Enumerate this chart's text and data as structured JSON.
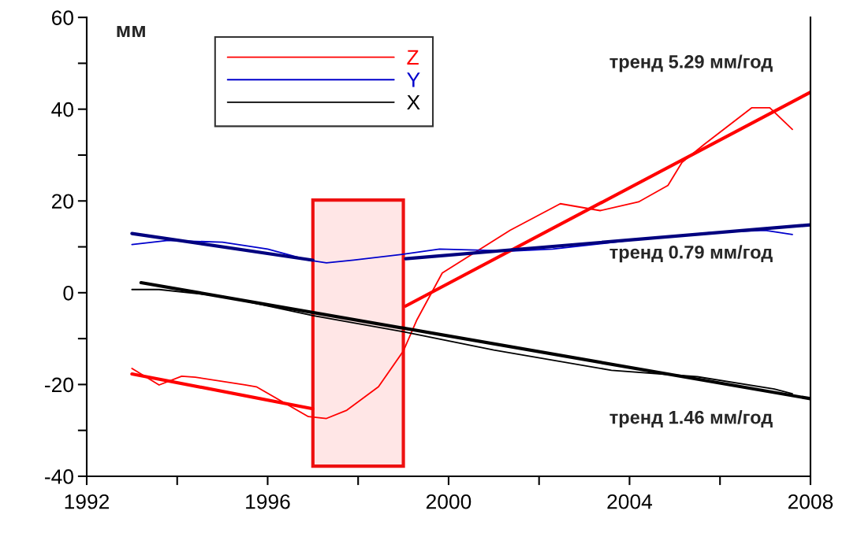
{
  "chart_data": {
    "type": "line",
    "ylabel": "мм",
    "xlim": [
      1992,
      2008
    ],
    "ylim": [
      -40,
      60
    ],
    "xticks": [
      1992,
      {
        "value": 1994,
        "label": null
      },
      1996,
      {
        "value": 1998,
        "label": null
      },
      2000,
      {
        "value": 2002,
        "label": null
      },
      2004,
      {
        "value": 2006,
        "label": null
      },
      2008
    ],
    "yticks": [
      -40,
      {
        "value": -30,
        "label": null
      },
      -20,
      {
        "value": -10,
        "label": null
      },
      0,
      {
        "value": 10,
        "label": null
      },
      20,
      {
        "value": 30,
        "label": null
      },
      40,
      {
        "value": 50,
        "label": null
      },
      60
    ],
    "series": [
      {
        "name": "Z",
        "color": "#ff0000",
        "x": [
          1993.0,
          1993.6,
          1994.1,
          1994.4,
          1995.5,
          1995.75,
          1996.9,
          1997.3,
          1997.75,
          1998.45,
          1999.0,
          1999.3,
          1999.86,
          2001.36,
          2002.47,
          2003.35,
          2004.2,
          2004.85,
          2005.16,
          2005.66,
          2006.7,
          2007.1,
          2007.6
        ],
        "values": [
          -16.5,
          -20.1,
          -18.2,
          -18.4,
          -20.1,
          -20.5,
          -27.0,
          -27.4,
          -25.6,
          -20.5,
          -12.7,
          -5.9,
          4.3,
          13.6,
          19.4,
          17.9,
          19.8,
          23.4,
          28.4,
          32.4,
          40.3,
          40.3,
          35.6
        ]
      },
      {
        "name": "Y",
        "color": "#0000cc",
        "x": [
          1993.0,
          1993.8,
          1995.0,
          1996.0,
          1996.9,
          1997.3,
          1997.9,
          1999.0,
          1999.8,
          2001.4,
          2002.3,
          2004.0,
          2005.8,
          2007.0,
          2007.6
        ],
        "values": [
          10.5,
          11.4,
          11.0,
          9.5,
          7.1,
          6.5,
          7.1,
          8.4,
          9.5,
          9.1,
          9.5,
          11.4,
          13.1,
          13.6,
          12.7
        ]
      },
      {
        "name": "X",
        "color": "#000000",
        "x": [
          1993.0,
          1993.6,
          1995.0,
          1997.0,
          1999.0,
          2001.0,
          2003.6,
          2005.5,
          2007.2,
          2007.6
        ],
        "values": [
          0.7,
          0.7,
          -0.8,
          -5.0,
          -8.5,
          -12.5,
          -16.9,
          -18.3,
          -21.0,
          -22.0
        ]
      },
      {
        "color": "#ff0000",
        "x": [
          1993.0,
          1997.0
        ],
        "values": [
          -17.7,
          -25.3
        ]
      },
      {
        "color": "#ff0000",
        "x": [
          1999.05,
          2008.0
        ],
        "values": [
          -2.9,
          43.7
        ]
      },
      {
        "color": "#00007f",
        "x": [
          1993.0,
          1997.0
        ],
        "values": [
          12.9,
          7.1
        ]
      },
      {
        "color": "#00007f",
        "x": [
          1999.05,
          2008.0
        ],
        "values": [
          7.4,
          14.8
        ]
      },
      {
        "color": "#000000",
        "x": [
          1993.2,
          2008.0
        ],
        "values": [
          2.2,
          -23.1
        ]
      }
    ],
    "bands": [
      {
        "axis": "x",
        "from": 1997.0,
        "to": 1999.0,
        "color": "#ee1111"
      }
    ],
    "annotations": [
      "тренд 5.29 мм/год",
      "тренд 0.79 мм/год",
      "тренд 1.46 мм/год"
    ],
    "legend": "top left",
    "grid": false
  }
}
